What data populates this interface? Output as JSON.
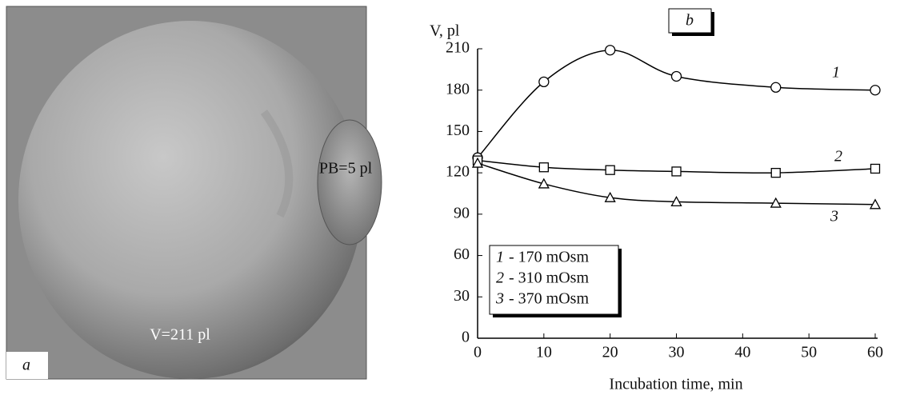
{
  "panel_a": {
    "tag": "a",
    "pb_label": "PB=5 pl",
    "volume_label": "V=211 pl"
  },
  "chart_data": {
    "type": "line",
    "panel_label": "b",
    "y_label": "V, pl",
    "x_label": "Incubation time, min",
    "x": [
      0,
      10,
      20,
      30,
      45,
      60
    ],
    "series": [
      {
        "name": "1",
        "legend_label": "- 170 mOsm",
        "marker": "circle",
        "color": "#000000",
        "values": [
          131,
          186,
          209,
          190,
          182,
          180
        ]
      },
      {
        "name": "2",
        "legend_label": "- 310 mOsm",
        "marker": "square",
        "color": "#000000",
        "values": [
          129,
          124,
          122,
          121,
          120,
          123
        ]
      },
      {
        "name": "3",
        "legend_label": "- 370 mOsm",
        "marker": "triangle",
        "color": "#000000",
        "values": [
          127,
          112,
          102,
          99,
          98,
          97
        ]
      }
    ],
    "xlim": [
      0,
      60
    ],
    "ylim": [
      0,
      210
    ],
    "xticks": [
      0,
      10,
      20,
      30,
      40,
      50,
      60
    ],
    "yticks": [
      0,
      30,
      60,
      90,
      120,
      150,
      180,
      210
    ]
  }
}
